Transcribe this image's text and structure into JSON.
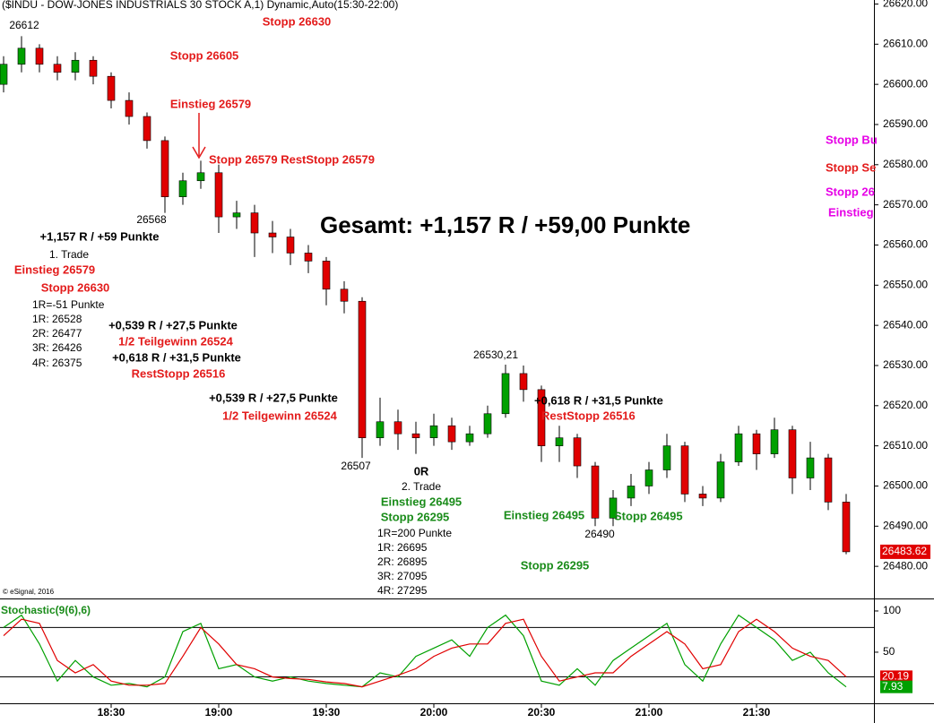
{
  "chart_data": [
    {
      "type": "candlestick",
      "title": "($INDU - DOW-JONES INDUSTRIALS 30 STOCK A,1) Dynamic,Auto(15:30-22:00)",
      "x": [
        1080,
        1085,
        1090,
        1095,
        1100,
        1105,
        1110,
        1115,
        1120,
        1125,
        1130,
        1135,
        1140,
        1145,
        1150,
        1155,
        1160,
        1165,
        1170,
        1175,
        1180,
        1185,
        1190,
        1195,
        1200,
        1205,
        1210,
        1215,
        1220,
        1225,
        1230,
        1235,
        1240,
        1245,
        1250,
        1255,
        1260,
        1265,
        1270,
        1275,
        1280,
        1285,
        1290,
        1295,
        1300,
        1305,
        1310,
        1315
      ],
      "open": [
        26600,
        26605,
        26609,
        26605,
        26603,
        26606,
        26602,
        26596,
        26592,
        26586,
        26572,
        26576,
        26578,
        26567,
        26568,
        26563,
        26562,
        26558,
        26556,
        26549,
        26546,
        26512,
        26516,
        26513,
        26512,
        26515,
        26511,
        26513,
        26518,
        26528,
        26524,
        26510,
        26512,
        26505,
        26492,
        26497,
        26500,
        26504,
        26510,
        26498,
        26497,
        26506,
        26513,
        26508,
        26514,
        26502,
        26507,
        26496
      ],
      "high": [
        26607,
        26612,
        26610,
        26607,
        26608,
        26607,
        26603,
        26598,
        26593,
        26587,
        26578,
        26581,
        26580,
        26571,
        26570,
        26566,
        26564,
        26560,
        26557,
        26551,
        26547,
        26522,
        26519,
        26516,
        26518,
        26517,
        26515,
        26520,
        26530.21,
        26530,
        26525,
        26515,
        26513,
        26506,
        26499,
        26503,
        26506,
        26513,
        26511,
        26500,
        26508,
        26515,
        26514,
        26517,
        26515,
        26511,
        26508,
        26498
      ],
      "low": [
        26598,
        26603,
        26603,
        26601,
        26601,
        26600,
        26594,
        26590,
        26584,
        26568,
        26570,
        26574,
        26563,
        26564,
        26557,
        26558,
        26555,
        26553,
        26545,
        26543,
        26507,
        26510,
        26509,
        26508,
        26510,
        26509,
        26510,
        26512,
        26517,
        26521,
        26506,
        26506,
        26502,
        26490,
        26490,
        26495,
        26498,
        26502,
        26496,
        26495,
        26496,
        26505,
        26504,
        26507,
        26498,
        26499,
        26494,
        26483
      ],
      "close": [
        26605,
        26609,
        26605,
        26603,
        26606,
        26602,
        26596,
        26592,
        26586,
        26572,
        26576,
        26578,
        26567,
        26568,
        26563,
        26562,
        26558,
        26556,
        26549,
        26546,
        26512,
        26516,
        26513,
        26512,
        26515,
        26511,
        26513,
        26518,
        26528,
        26524,
        26510,
        26512,
        26505,
        26492,
        26497,
        26500,
        26504,
        26510,
        26498,
        26497,
        26506,
        26513,
        26508,
        26514,
        26502,
        26507,
        26496,
        26483.62
      ],
      "up_color": "#00a000",
      "down_color": "#e00000",
      "xlim": [
        1079,
        1322.75
      ],
      "ylim": [
        26472,
        26621
      ],
      "xticks": [
        {
          "value": 1110,
          "label": "18:30"
        },
        {
          "value": 1140,
          "label": "19:00"
        },
        {
          "value": 1170,
          "label": "19:30"
        },
        {
          "value": 1200,
          "label": "20:00"
        },
        {
          "value": 1230,
          "label": "20:30"
        },
        {
          "value": 1260,
          "label": "21:00"
        },
        {
          "value": 1290,
          "label": "21:30"
        }
      ],
      "yticks": [
        {
          "value": 26620,
          "label": "26620.00"
        },
        {
          "value": 26610,
          "label": "26610.00"
        },
        {
          "value": 26600,
          "label": "26600.00"
        },
        {
          "value": 26590,
          "label": "26590.00"
        },
        {
          "value": 26580,
          "label": "26580.00"
        },
        {
          "value": 26570,
          "label": "26570.00"
        },
        {
          "value": 26560,
          "label": "26560.00"
        },
        {
          "value": 26550,
          "label": "26550.00"
        },
        {
          "value": 26540,
          "label": "26540.00"
        },
        {
          "value": 26530,
          "label": "26530.00"
        },
        {
          "value": 26520,
          "label": "26520.00"
        },
        {
          "value": 26510,
          "label": "26510.00"
        },
        {
          "value": 26500,
          "label": "26500.00"
        },
        {
          "value": 26490,
          "label": "26490.00"
        },
        {
          "value": 26480,
          "label": "26480.00"
        }
      ],
      "annotations": [
        {
          "text": "Stopp 26630",
          "color": "#e31b1b"
        },
        {
          "text": "Stopp 26605",
          "color": "#e31b1b"
        },
        {
          "text": "Einstieg 26579",
          "color": "#e31b1b"
        },
        {
          "text": "Stopp 26579  RestStopp 26579",
          "color": "#e31b1b"
        },
        {
          "text": "26612",
          "color": "#000000"
        },
        {
          "text": "26568",
          "color": "#000000"
        },
        {
          "text": "+1,157 R / +59 Punkte",
          "color": "#000000"
        },
        {
          "text": "1. Trade",
          "color": "#000000"
        },
        {
          "text": "Einstieg 26579",
          "color": "#e31b1b"
        },
        {
          "text": "Stopp 26630",
          "color": "#e31b1b"
        },
        {
          "text": "1R=-51 Punkte",
          "color": "#000000"
        },
        {
          "text": "1R: 26528",
          "color": "#000000"
        },
        {
          "text": "2R: 26477",
          "color": "#000000"
        },
        {
          "text": "3R: 26426",
          "color": "#000000"
        },
        {
          "text": "4R: 26375",
          "color": "#000000"
        },
        {
          "text": "+0,539 R / +27,5 Punkte",
          "color": "#000000"
        },
        {
          "text": "1/2 Teilgewinn 26524",
          "color": "#e31b1b"
        },
        {
          "text": "+0,618 R / +31,5 Punkte",
          "color": "#000000"
        },
        {
          "text": "RestStopp 26516",
          "color": "#e31b1b"
        },
        {
          "text": "+0,539 R / +27,5 Punkte",
          "color": "#000000"
        },
        {
          "text": "1/2 Teilgewinn 26524",
          "color": "#e31b1b"
        },
        {
          "text": "26507",
          "color": "#000000"
        },
        {
          "text": "0R",
          "color": "#000000"
        },
        {
          "text": "2. Trade",
          "color": "#000000"
        },
        {
          "text": "Einstieg 26495",
          "color": "#1a8c1a"
        },
        {
          "text": "Stopp 26295",
          "color": "#1a8c1a"
        },
        {
          "text": "1R=200 Punkte",
          "color": "#000000"
        },
        {
          "text": "1R: 26695",
          "color": "#000000"
        },
        {
          "text": "2R: 26895",
          "color": "#000000"
        },
        {
          "text": "3R: 27095",
          "color": "#000000"
        },
        {
          "text": "4R: 27295",
          "color": "#000000"
        },
        {
          "text": "26530,21",
          "color": "#000000"
        },
        {
          "text": "+0,618 R / +31,5 Punkte",
          "color": "#000000"
        },
        {
          "text": "RestStopp 26516",
          "color": "#e31b1b"
        },
        {
          "text": "Einstieg 26495",
          "color": "#1a8c1a"
        },
        {
          "text": "Stopp 26495",
          "color": "#1a8c1a"
        },
        {
          "text": "26490",
          "color": "#000000"
        },
        {
          "text": "Stopp 26295",
          "color": "#1a8c1a"
        },
        {
          "text": "Gesamt: +1,157 R / +59,00 Punkte",
          "color": "#000000"
        },
        {
          "text": "Stopp Bu",
          "color": "#e600e6"
        },
        {
          "text": "Stopp Se",
          "color": "#e31b1b"
        },
        {
          "text": "Stopp 26",
          "color": "#e600e6"
        },
        {
          "text": "Einstieg",
          "color": "#e600e6"
        },
        {
          "text": "© eSignal, 2016",
          "color": "#000000"
        }
      ]
    },
    {
      "type": "line",
      "title": "Stochastic(9(6),6)",
      "title_color": "#1a8c1a",
      "series": [
        {
          "color": "#00a000",
          "values": [
            80,
            95,
            60,
            15,
            40,
            20,
            10,
            12,
            8,
            20,
            75,
            85,
            30,
            35,
            20,
            15,
            20,
            15,
            12,
            10,
            8,
            25,
            20,
            45,
            55,
            65,
            45,
            80,
            95,
            70,
            15,
            10,
            30,
            10,
            40,
            55,
            70,
            85,
            35,
            15,
            60,
            95,
            80,
            65,
            40,
            50,
            25,
            7.93
          ]
        },
        {
          "color": "#e00000",
          "values": [
            70,
            90,
            85,
            40,
            25,
            35,
            15,
            10,
            10,
            12,
            45,
            80,
            60,
            35,
            30,
            20,
            18,
            17,
            14,
            12,
            8,
            15,
            22,
            30,
            45,
            55,
            60,
            60,
            85,
            90,
            45,
            15,
            20,
            25,
            25,
            45,
            60,
            75,
            60,
            30,
            35,
            75,
            90,
            75,
            55,
            45,
            40,
            20.19
          ]
        }
      ],
      "ylim": [
        -12,
        113
      ],
      "yticks": [
        100,
        50
      ],
      "hlines": [
        80,
        20
      ]
    }
  ]
}
